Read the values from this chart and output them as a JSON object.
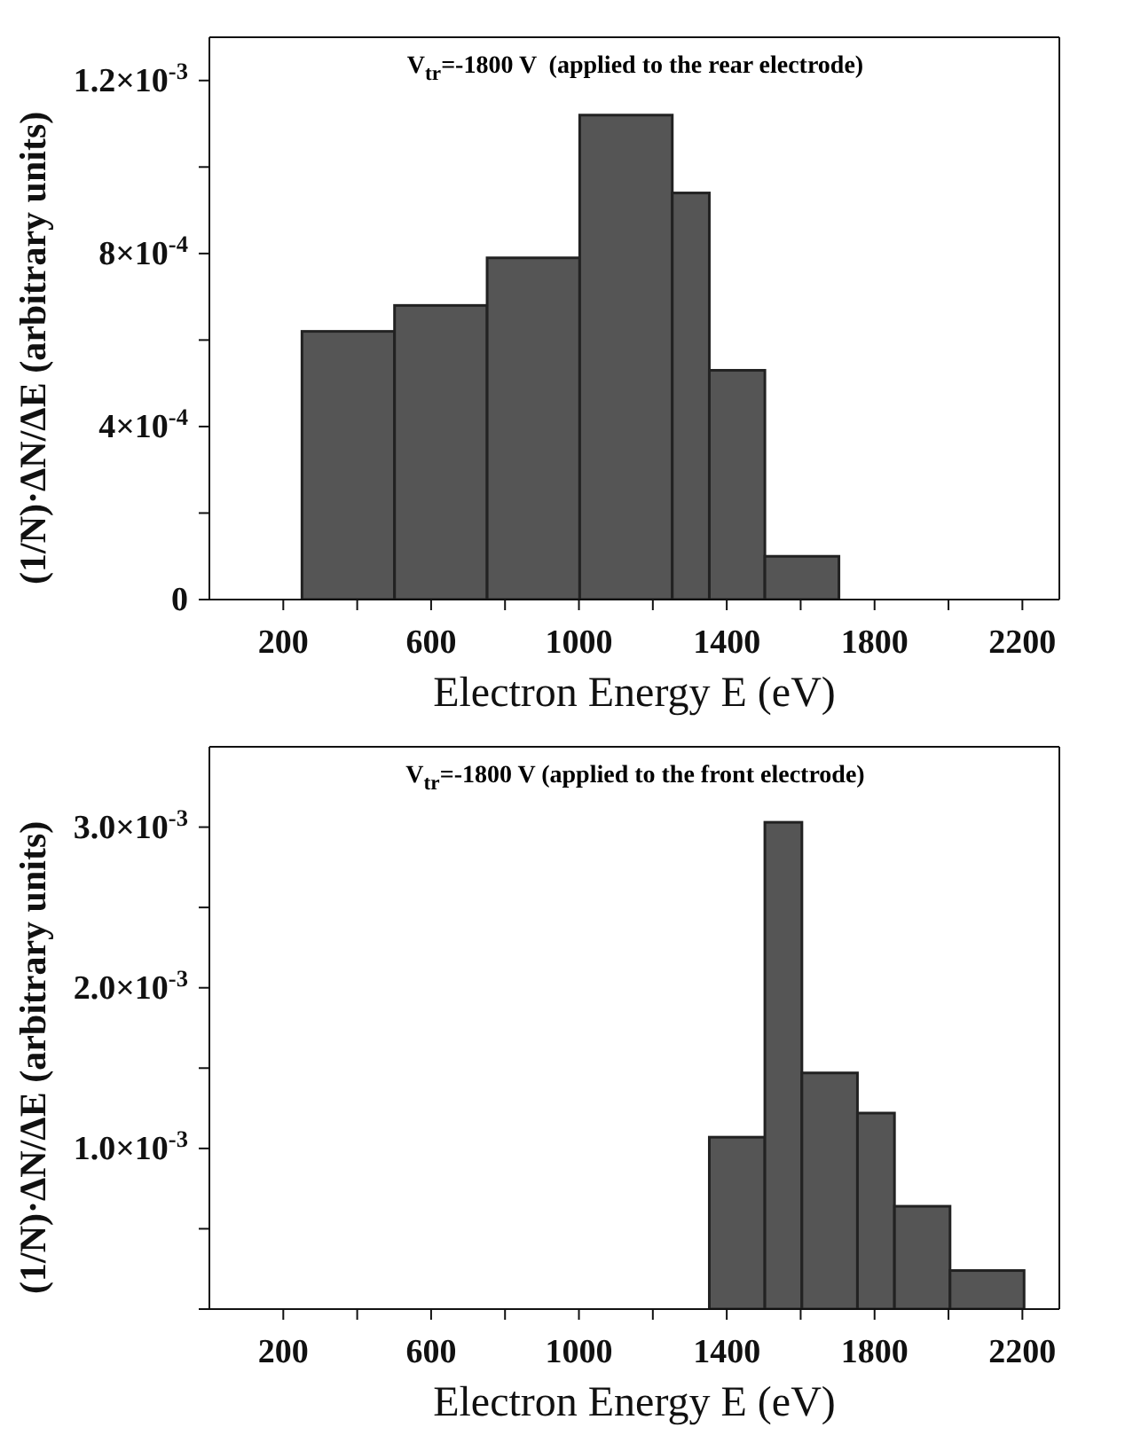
{
  "chart_data": [
    {
      "type": "histogram",
      "title": "V$_{tr}$=-1800 V  (applied to the rear electrode)",
      "xlabel": "Electron Energy E (eV)",
      "ylabel": "(1/N)·ΔN/ΔE (arbitrary units)",
      "color": "#555555",
      "bins": [
        250,
        500,
        750,
        1000,
        1250,
        1350,
        1500,
        1700
      ],
      "values": [
        0.00062,
        0.00068,
        0.00079,
        0.00112,
        0.00094,
        0.00053,
        0.0001
      ],
      "xlim": [
        0,
        2300
      ],
      "xticks": [
        200,
        {
          "value": 400,
          "label": null
        },
        600,
        {
          "value": 800,
          "label": null
        },
        1000,
        {
          "value": 1200,
          "label": null
        },
        1400,
        {
          "value": 1600,
          "label": null
        },
        1800,
        {
          "value": 2000,
          "label": null
        },
        2200
      ],
      "ylim": [
        0,
        0.0013
      ],
      "yticks": [
        0,
        {
          "value": 0.0002,
          "label": null
        },
        {
          "value": 0.0004,
          "label": "4×10$^{-4}$"
        },
        {
          "value": 0.0006,
          "label": null
        },
        {
          "value": 0.0008,
          "label": "8×10$^{-4}$"
        },
        {
          "value": 0.001,
          "label": null
        },
        {
          "value": 0.0012,
          "label": "1.2×10$^{-3}$"
        }
      ]
    },
    {
      "type": "histogram",
      "title": "V$_{tr}$=-1800 V (applied to the front electrode)",
      "xlabel": "Electron Energy E (eV)",
      "ylabel": "(1/N)·ΔN/ΔE (arbitrary units)",
      "color": "#555555",
      "bins": [
        1350,
        1500,
        1600,
        1750,
        1850,
        2000,
        2200
      ],
      "values": [
        0.00107,
        0.00303,
        0.00147,
        0.00122,
        0.00064,
        0.00024
      ],
      "xlim": [
        0,
        2300
      ],
      "xticks": [
        200,
        {
          "value": 400,
          "label": null
        },
        600,
        {
          "value": 800,
          "label": null
        },
        1000,
        {
          "value": 1200,
          "label": null
        },
        1400,
        {
          "value": 1600,
          "label": null
        },
        1800,
        {
          "value": 2000,
          "label": null
        },
        2200
      ],
      "ylim": [
        0,
        0.0035
      ],
      "yticks": [
        {
          "value": 0,
          "label": null
        },
        {
          "value": 0.0005,
          "label": null
        },
        {
          "value": 0.001,
          "label": "1.0×10$^{-3}$"
        },
        {
          "value": 0.0015,
          "label": null
        },
        {
          "value": 0.002,
          "label": "2.0×10$^{-3}$"
        },
        {
          "value": 0.0025,
          "label": null
        },
        {
          "value": 0.003,
          "label": "3.0×10$^{-3}$"
        }
      ]
    }
  ]
}
